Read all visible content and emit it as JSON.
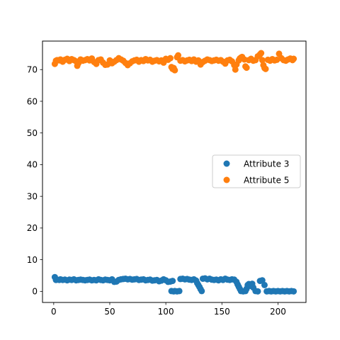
{
  "chart_data": {
    "type": "scatter",
    "title": "",
    "xlabel": "",
    "ylabel": "",
    "xlim": [
      -10,
      225
    ],
    "ylim": [
      -3.5,
      79
    ],
    "xticks": [
      0,
      50,
      100,
      150,
      200
    ],
    "yticks": [
      0,
      10,
      20,
      30,
      40,
      50,
      60,
      70
    ],
    "grid": false,
    "legend_position": "center-right",
    "series": [
      {
        "name": "Attribute 3",
        "color": "#1f77b4",
        "points": [
          [
            1,
            4.5
          ],
          [
            2,
            3.6
          ],
          [
            3,
            3.7
          ],
          [
            5,
            3.6
          ],
          [
            6,
            3.8
          ],
          [
            8,
            3.6
          ],
          [
            10,
            3.7
          ],
          [
            12,
            3.5
          ],
          [
            14,
            3.7
          ],
          [
            16,
            3.6
          ],
          [
            18,
            3.8
          ],
          [
            20,
            3.5
          ],
          [
            22,
            3.6
          ],
          [
            24,
            3.7
          ],
          [
            26,
            3.6
          ],
          [
            28,
            3.5
          ],
          [
            30,
            3.6
          ],
          [
            32,
            3.7
          ],
          [
            34,
            3.5
          ],
          [
            36,
            3.6
          ],
          [
            38,
            3.5
          ],
          [
            40,
            3.8
          ],
          [
            42,
            3.6
          ],
          [
            44,
            3.5
          ],
          [
            46,
            3.7
          ],
          [
            48,
            3.6
          ],
          [
            50,
            3.5
          ],
          [
            52,
            3.8
          ],
          [
            54,
            3.0
          ],
          [
            56,
            3.1
          ],
          [
            58,
            3.6
          ],
          [
            60,
            3.8
          ],
          [
            62,
            3.9
          ],
          [
            64,
            4.0
          ],
          [
            66,
            3.8
          ],
          [
            68,
            3.9
          ],
          [
            70,
            3.7
          ],
          [
            72,
            3.8
          ],
          [
            74,
            3.9
          ],
          [
            76,
            3.6
          ],
          [
            78,
            3.7
          ],
          [
            80,
            3.8
          ],
          [
            82,
            3.5
          ],
          [
            84,
            3.6
          ],
          [
            86,
            3.7
          ],
          [
            88,
            3.4
          ],
          [
            90,
            3.5
          ],
          [
            92,
            3.6
          ],
          [
            94,
            3.2
          ],
          [
            96,
            3.4
          ],
          [
            98,
            3.8
          ],
          [
            100,
            3.5
          ],
          [
            102,
            3.0
          ],
          [
            104,
            3.1
          ],
          [
            105,
            0.1
          ],
          [
            106,
            3.3
          ],
          [
            107,
            0.0
          ],
          [
            108,
            0.1
          ],
          [
            110,
            0.0
          ],
          [
            112,
            0.1
          ],
          [
            113,
            3.9
          ],
          [
            115,
            4.0
          ],
          [
            117,
            3.8
          ],
          [
            119,
            3.9
          ],
          [
            121,
            3.7
          ],
          [
            123,
            3.6
          ],
          [
            125,
            3.8
          ],
          [
            127,
            3.4
          ],
          [
            128,
            2.6
          ],
          [
            129,
            2.0
          ],
          [
            130,
            1.4
          ],
          [
            131,
            0.7
          ],
          [
            132,
            0.1
          ],
          [
            133,
            4.0
          ],
          [
            135,
            4.1
          ],
          [
            137,
            3.8
          ],
          [
            139,
            4.0
          ],
          [
            141,
            3.7
          ],
          [
            143,
            3.6
          ],
          [
            145,
            3.7
          ],
          [
            147,
            3.5
          ],
          [
            149,
            3.8
          ],
          [
            151,
            3.6
          ],
          [
            153,
            4.0
          ],
          [
            155,
            3.7
          ],
          [
            157,
            3.6
          ],
          [
            159,
            3.8
          ],
          [
            161,
            3.7
          ],
          [
            163,
            3.0
          ],
          [
            164,
            2.2
          ],
          [
            165,
            1.5
          ],
          [
            166,
            0.8
          ],
          [
            167,
            0.1
          ],
          [
            169,
            0.0
          ],
          [
            171,
            0.1
          ],
          [
            172,
            0.8
          ],
          [
            173,
            2.0
          ],
          [
            174,
            2.3
          ],
          [
            176,
            1.7
          ],
          [
            177,
            2.4
          ],
          [
            178,
            1.2
          ],
          [
            180,
            0.1
          ],
          [
            182,
            0.0
          ],
          [
            184,
            3.3
          ],
          [
            186,
            3.5
          ],
          [
            188,
            2.0
          ],
          [
            190,
            0.0
          ],
          [
            192,
            0.1
          ],
          [
            194,
            0.0
          ],
          [
            196,
            0.1
          ],
          [
            198,
            0.0
          ],
          [
            200,
            0.1
          ],
          [
            202,
            0.0
          ],
          [
            204,
            0.1
          ],
          [
            206,
            0.0
          ],
          [
            208,
            0.1
          ],
          [
            210,
            0.0
          ],
          [
            212,
            0.1
          ],
          [
            214,
            0.0
          ]
        ]
      },
      {
        "name": "Attribute 5",
        "color": "#ff7f0e",
        "points": [
          [
            1,
            71.8
          ],
          [
            2,
            72.8
          ],
          [
            3,
            73.0
          ],
          [
            5,
            72.9
          ],
          [
            6,
            73.2
          ],
          [
            8,
            72.5
          ],
          [
            10,
            73.1
          ],
          [
            12,
            73.4
          ],
          [
            14,
            72.7
          ],
          [
            16,
            73.3
          ],
          [
            18,
            73.0
          ],
          [
            20,
            72.6
          ],
          [
            21,
            71.2
          ],
          [
            22,
            72.0
          ],
          [
            24,
            73.2
          ],
          [
            26,
            72.8
          ],
          [
            28,
            73.0
          ],
          [
            30,
            73.3
          ],
          [
            32,
            72.9
          ],
          [
            34,
            73.5
          ],
          [
            36,
            72.4
          ],
          [
            38,
            71.8
          ],
          [
            40,
            73.0
          ],
          [
            42,
            73.2
          ],
          [
            44,
            72.2
          ],
          [
            46,
            71.5
          ],
          [
            48,
            71.6
          ],
          [
            50,
            72.9
          ],
          [
            52,
            72.0
          ],
          [
            54,
            72.5
          ],
          [
            56,
            73.0
          ],
          [
            58,
            73.6
          ],
          [
            60,
            73.2
          ],
          [
            62,
            72.8
          ],
          [
            64,
            72.1
          ],
          [
            66,
            71.4
          ],
          [
            68,
            72.0
          ],
          [
            70,
            72.6
          ],
          [
            72,
            72.9
          ],
          [
            74,
            73.1
          ],
          [
            76,
            72.5
          ],
          [
            78,
            73.0
          ],
          [
            80,
            72.7
          ],
          [
            82,
            73.3
          ],
          [
            84,
            72.9
          ],
          [
            86,
            73.1
          ],
          [
            88,
            72.5
          ],
          [
            90,
            72.8
          ],
          [
            92,
            73.0
          ],
          [
            94,
            72.6
          ],
          [
            96,
            72.9
          ],
          [
            98,
            72.2
          ],
          [
            100,
            73.4
          ],
          [
            102,
            73.1
          ],
          [
            104,
            73.6
          ],
          [
            105,
            70.8
          ],
          [
            106,
            70.2
          ],
          [
            107,
            70.5
          ],
          [
            108,
            69.8
          ],
          [
            110,
            73.9
          ],
          [
            111,
            74.5
          ],
          [
            113,
            72.8
          ],
          [
            115,
            73.0
          ],
          [
            117,
            72.6
          ],
          [
            119,
            72.9
          ],
          [
            121,
            73.1
          ],
          [
            123,
            72.7
          ],
          [
            125,
            73.2
          ],
          [
            127,
            72.5
          ],
          [
            129,
            72.9
          ],
          [
            131,
            71.6
          ],
          [
            133,
            72.4
          ],
          [
            135,
            72.8
          ],
          [
            137,
            73.2
          ],
          [
            139,
            73.0
          ],
          [
            141,
            72.7
          ],
          [
            143,
            72.9
          ],
          [
            145,
            73.1
          ],
          [
            147,
            72.8
          ],
          [
            149,
            73.0
          ],
          [
            151,
            72.5
          ],
          [
            153,
            71.9
          ],
          [
            155,
            72.9
          ],
          [
            157,
            73.1
          ],
          [
            159,
            72.6
          ],
          [
            161,
            71.4
          ],
          [
            162,
            70.0
          ],
          [
            163,
            71.6
          ],
          [
            165,
            72.9
          ],
          [
            166,
            73.5
          ],
          [
            167,
            73.8
          ],
          [
            168,
            74.0
          ],
          [
            170,
            73.2
          ],
          [
            171,
            71.0
          ],
          [
            172,
            70.6
          ],
          [
            174,
            73.0
          ],
          [
            176,
            73.4
          ],
          [
            178,
            72.8
          ],
          [
            180,
            73.0
          ],
          [
            182,
            74.2
          ],
          [
            184,
            74.8
          ],
          [
            185,
            75.2
          ],
          [
            186,
            73.0
          ],
          [
            187,
            71.4
          ],
          [
            188,
            70.5
          ],
          [
            189,
            70.2
          ],
          [
            191,
            73.1
          ],
          [
            193,
            72.8
          ],
          [
            195,
            73.3
          ],
          [
            197,
            72.9
          ],
          [
            199,
            73.1
          ],
          [
            201,
            75.0
          ],
          [
            203,
            73.6
          ],
          [
            205,
            73.0
          ],
          [
            207,
            72.8
          ],
          [
            209,
            73.2
          ],
          [
            211,
            73.5
          ],
          [
            213,
            73.0
          ],
          [
            214,
            73.4
          ]
        ]
      }
    ]
  }
}
